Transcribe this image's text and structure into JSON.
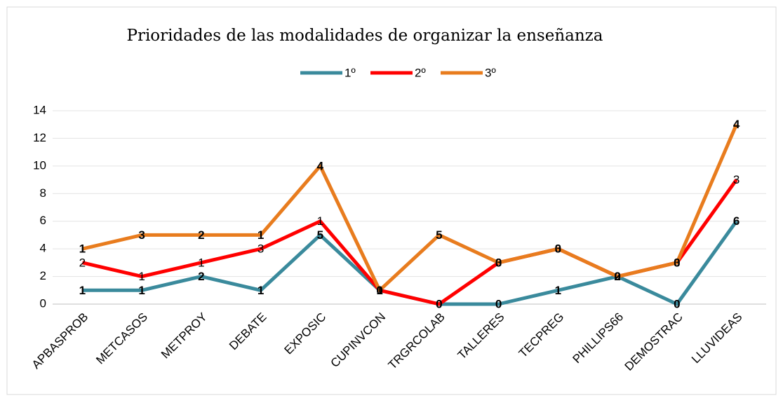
{
  "chart_data": {
    "type": "line",
    "stacked": true,
    "title": "Prioridades de las modalidades de organizar la enseñanza",
    "categories": [
      "APBASPROB",
      "METCASOS",
      "METPROY",
      "DEBATE",
      "EXPOSIC",
      "CUPINVCON",
      "TRGRCOLAB",
      "TALLERES",
      "TECPREG",
      "PHILLIPS66",
      "DEMOSTRAC",
      "LLUVIDEAS"
    ],
    "series": [
      {
        "name": "1º",
        "color": "#3a8a9c",
        "values": [
          1,
          1,
          2,
          1,
          5,
          1,
          0,
          0,
          1,
          2,
          0,
          6
        ]
      },
      {
        "name": "2º",
        "color": "#ff0000",
        "values": [
          2,
          1,
          1,
          3,
          1,
          0,
          0,
          3,
          3,
          0,
          3,
          3
        ]
      },
      {
        "name": "3º",
        "color": "#e87c1e",
        "values": [
          1,
          3,
          2,
          1,
          4,
          0,
          5,
          0,
          0,
          0,
          0,
          4
        ]
      }
    ],
    "ylim": [
      0,
      14
    ],
    "yticks": [
      0,
      2,
      4,
      6,
      8,
      10,
      12,
      14
    ],
    "grid": true,
    "legend": "top"
  }
}
